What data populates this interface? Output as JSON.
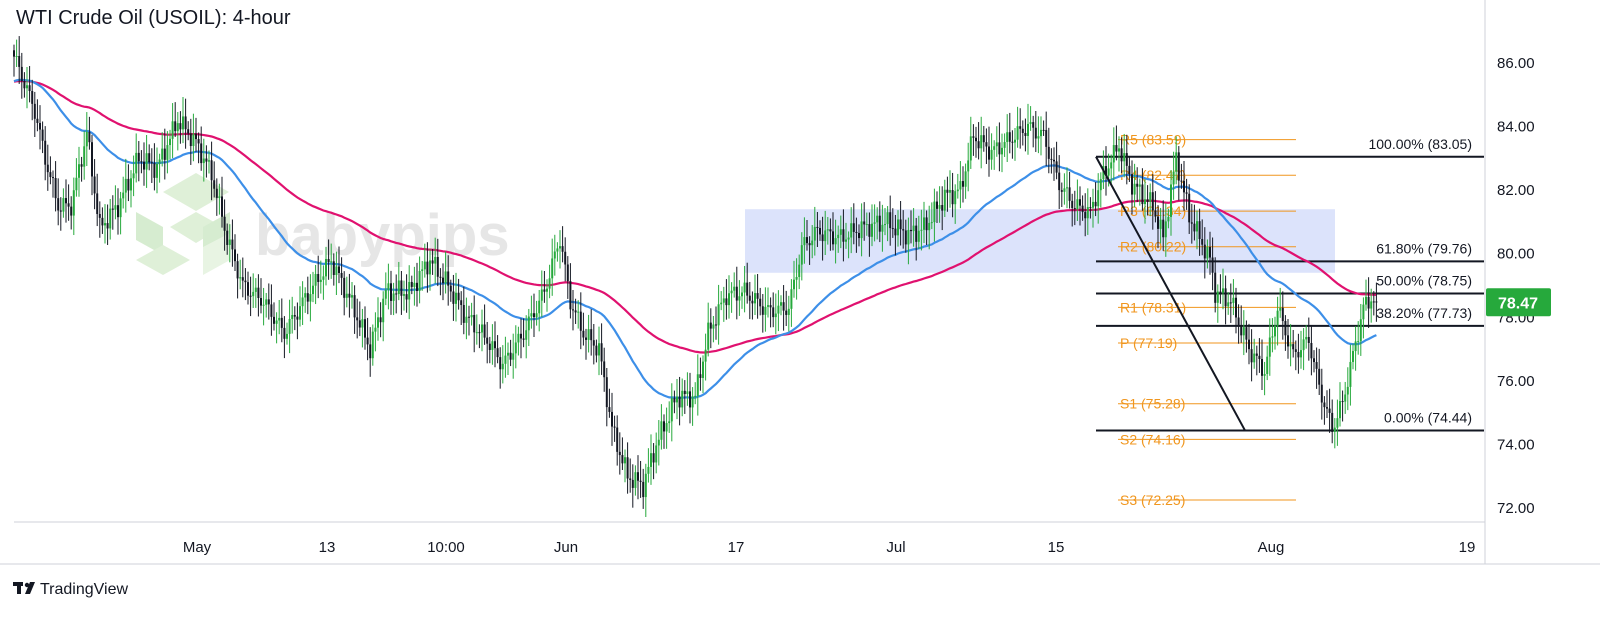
{
  "chart_data": {
    "type": "candlestick",
    "title": "WTI Crude Oil (USOIL): 4-hour",
    "watermark": "babypips",
    "brand": "TradingView",
    "x_ticks": [
      "May",
      "13",
      "10:00",
      "Jun",
      "17",
      "Jul",
      "15",
      "Aug",
      "19"
    ],
    "y_ticks": [
      "72.00",
      "74.00",
      "76.00",
      "78.00",
      "80.00",
      "82.00",
      "84.00",
      "86.00"
    ],
    "ylim": [
      71.5,
      87.2
    ],
    "current_price": {
      "label": "78.47",
      "value": 78.47,
      "color": "#26a93c"
    },
    "supply_zone": {
      "low": 79.4,
      "high": 81.4,
      "color": "#dce3fb"
    },
    "pivots": [
      {
        "label": "R5 (83.59)",
        "value": 83.59
      },
      {
        "label": "R4 (82.47)",
        "value": 82.47
      },
      {
        "label": "R3 (81.34)",
        "value": 81.34
      },
      {
        "label": "R2 (80.22)",
        "value": 80.22
      },
      {
        "label": "R1 (78.31)",
        "value": 78.31
      },
      {
        "label": "P (77.19)",
        "value": 77.19
      },
      {
        "label": "S1 (75.28)",
        "value": 75.28
      },
      {
        "label": "S2 (74.16)",
        "value": 74.16
      },
      {
        "label": "S3 (72.25)",
        "value": 72.25
      }
    ],
    "fib_levels": [
      {
        "label": "100.00% (83.05)",
        "value": 83.05
      },
      {
        "label": "61.80% (79.76)",
        "value": 79.76
      },
      {
        "label": "50.00% (78.75)",
        "value": 78.75
      },
      {
        "label": "38.20% (77.73)",
        "value": 77.73
      },
      {
        "label": "0.00% (74.44)",
        "value": 74.44
      }
    ],
    "trend_line": {
      "from": 83.05,
      "to": 74.44
    },
    "colors": {
      "up": "#26a93c",
      "down": "#131722",
      "ma_fast": "#3d8fe8",
      "ma_slow": "#e0116f",
      "pivot": "#f0961e"
    },
    "price_path": [
      [
        0,
        86.2
      ],
      [
        3,
        85.6
      ],
      [
        8,
        84.5
      ],
      [
        12,
        83.0
      ],
      [
        17,
        81.5
      ],
      [
        22,
        81.5
      ],
      [
        28,
        83.8
      ],
      [
        33,
        80.8
      ],
      [
        40,
        81.5
      ],
      [
        48,
        83.0
      ],
      [
        55,
        82.7
      ],
      [
        63,
        84.2
      ],
      [
        70,
        83.5
      ],
      [
        76,
        82.5
      ],
      [
        82,
        80.5
      ],
      [
        88,
        79.0
      ],
      [
        96,
        78.5
      ],
      [
        104,
        77.5
      ],
      [
        112,
        78.6
      ],
      [
        122,
        79.8
      ],
      [
        130,
        78.4
      ],
      [
        137,
        77.0
      ],
      [
        143,
        78.8
      ],
      [
        152,
        78.8
      ],
      [
        160,
        79.8
      ],
      [
        167,
        79.0
      ],
      [
        174,
        78.0
      ],
      [
        182,
        77.3
      ],
      [
        188,
        76.5
      ],
      [
        196,
        77.5
      ],
      [
        204,
        78.8
      ],
      [
        210,
        80.5
      ],
      [
        214,
        78.5
      ],
      [
        219,
        77.5
      ],
      [
        225,
        77.0
      ],
      [
        230,
        74.5
      ],
      [
        236,
        73.0
      ],
      [
        242,
        72.7
      ],
      [
        247,
        74.0
      ],
      [
        255,
        75.5
      ],
      [
        262,
        75.5
      ],
      [
        267,
        77.5
      ],
      [
        274,
        78.7
      ],
      [
        281,
        78.8
      ],
      [
        290,
        78.2
      ],
      [
        298,
        78.3
      ],
      [
        303,
        80.2
      ],
      [
        309,
        80.7
      ],
      [
        318,
        80.5
      ],
      [
        326,
        80.8
      ],
      [
        335,
        81.0
      ],
      [
        344,
        80.6
      ],
      [
        350,
        80.8
      ],
      [
        358,
        81.8
      ],
      [
        364,
        82.0
      ],
      [
        369,
        83.7
      ],
      [
        376,
        83.2
      ],
      [
        383,
        83.6
      ],
      [
        390,
        84.0
      ],
      [
        396,
        83.7
      ],
      [
        402,
        82.2
      ],
      [
        408,
        81.5
      ],
      [
        414,
        81.3
      ],
      [
        419,
        82.5
      ],
      [
        425,
        83.4
      ],
      [
        430,
        82.2
      ],
      [
        438,
        81.5
      ],
      [
        442,
        80.5
      ],
      [
        447,
        83.0
      ],
      [
        452,
        81.2
      ],
      [
        456,
        80.5
      ],
      [
        460,
        79.8
      ],
      [
        462,
        78.8
      ],
      [
        468,
        78.5
      ],
      [
        475,
        77.0
      ],
      [
        481,
        76.3
      ],
      [
        486,
        78.3
      ],
      [
        492,
        76.8
      ],
      [
        498,
        77.3
      ],
      [
        502,
        75.8
      ],
      [
        507,
        74.5
      ],
      [
        511,
        75.3
      ],
      [
        515,
        76.8
      ],
      [
        519,
        78.3
      ],
      [
        522,
        78.6
      ],
      [
        524,
        78.5
      ]
    ]
  }
}
